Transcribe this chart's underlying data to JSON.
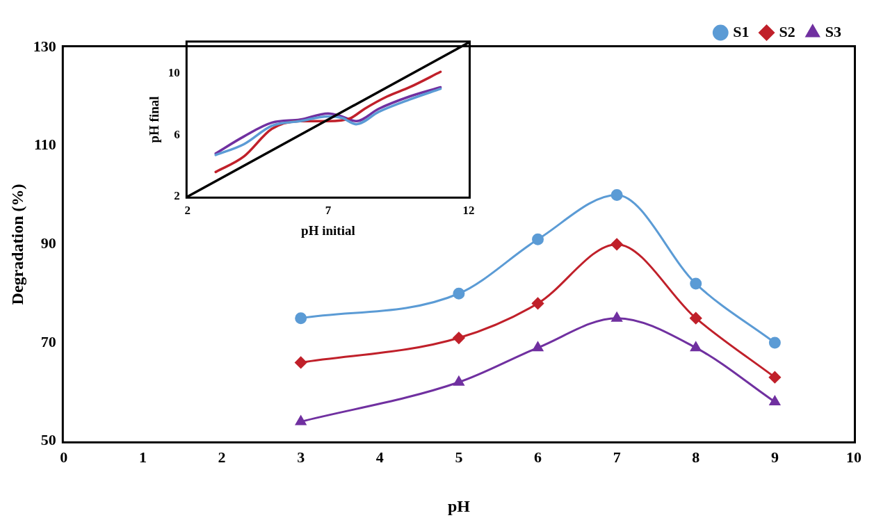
{
  "chart_data": [
    {
      "type": "line",
      "xlabel": "pH",
      "ylabel": "Degradation (%)",
      "x": [
        3,
        5,
        6,
        7,
        8,
        9
      ],
      "xlim": [
        0,
        10
      ],
      "xticks": [
        0,
        1,
        2,
        3,
        4,
        5,
        6,
        7,
        8,
        9,
        10
      ],
      "ylim": [
        50,
        130
      ],
      "yticks": [
        50,
        70,
        90,
        110,
        130
      ],
      "legend": "top right",
      "series": [
        {
          "name": "S1",
          "color": "#5b9bd5",
          "marker": "circle",
          "values": [
            75,
            80,
            91,
            100,
            82,
            70
          ]
        },
        {
          "name": "S2",
          "color": "#c0202a",
          "marker": "diamond",
          "values": [
            66,
            71,
            78,
            90,
            75,
            63
          ]
        },
        {
          "name": "S3",
          "color": "#7030a0",
          "marker": "triangle",
          "values": [
            54,
            62,
            69,
            75,
            69,
            58
          ]
        }
      ]
    },
    {
      "type": "line",
      "xlabel": "pH initial",
      "ylabel": "pH final",
      "xlim": [
        2,
        12
      ],
      "xticks": [
        2,
        7,
        12
      ],
      "ylim": [
        2,
        12
      ],
      "yticks": [
        2,
        6,
        10
      ],
      "marker": "none",
      "legend": false,
      "series": [
        {
          "color": "#000000",
          "x": [
            2,
            12
          ],
          "values": [
            2,
            12
          ]
        },
        {
          "color": "#5b9bd5",
          "x": [
            3,
            4,
            5,
            6,
            7,
            7.5,
            8,
            8.8,
            9.9,
            11
          ],
          "values": [
            4.7,
            5.4,
            6.6,
            6.9,
            7.2,
            7.1,
            6.7,
            7.5,
            8.3,
            9
          ]
        },
        {
          "color": "#c0202a",
          "x": [
            3,
            4,
            5,
            6,
            7,
            7.8,
            8.3,
            9.1,
            9.9,
            11
          ],
          "values": [
            3.6,
            4.6,
            6.4,
            6.9,
            6.9,
            7.1,
            7.7,
            8.5,
            9.1,
            10.1
          ]
        },
        {
          "color": "#7030a0",
          "x": [
            3,
            4,
            5,
            6,
            7,
            7.5,
            8,
            8.8,
            9.9,
            11
          ],
          "values": [
            4.8,
            5.9,
            6.8,
            7,
            7.4,
            7.2,
            6.9,
            7.7,
            8.5,
            9.1
          ]
        }
      ]
    }
  ]
}
